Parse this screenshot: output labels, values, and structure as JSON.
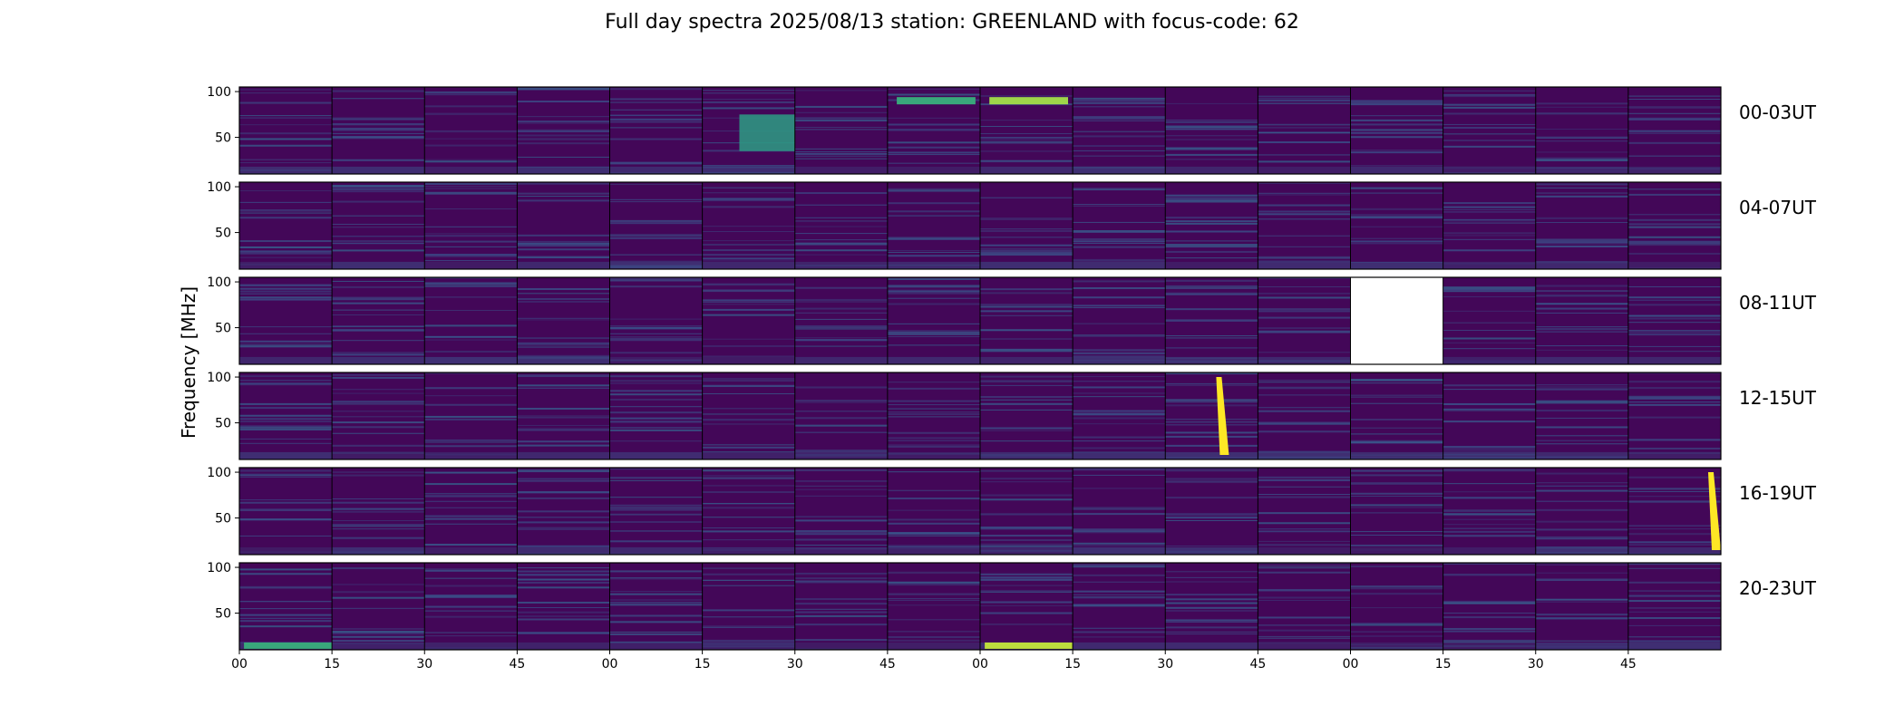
{
  "chart_data": {
    "type": "heatmap",
    "title": "Full day spectra 2025/08/13 station: GREENLAND with focus-code: 62",
    "ylabel": "Frequency [MHz]",
    "xlabel": "",
    "rows": [
      "00-03UT",
      "04-07UT",
      "08-11UT",
      "12-15UT",
      "16-19UT",
      "20-23UT"
    ],
    "panels_per_row": 16,
    "panel_minutes": 15,
    "ylim": [
      10,
      105
    ],
    "y_ticks": [
      "100",
      "50"
    ],
    "x_tick_labels": [
      "00",
      "15",
      "30",
      "45",
      "00",
      "15",
      "30",
      "45",
      "00",
      "15",
      "30",
      "45",
      "00",
      "15",
      "30",
      "45"
    ],
    "colormap": {
      "low": "#440154",
      "mid": "#21918c",
      "high": "#fde725"
    },
    "missing_panels": [
      {
        "row": "08-11UT",
        "panel_index": 12
      }
    ],
    "bursts": [
      {
        "row": "00-03UT",
        "panel_index": 5,
        "description": "broadband emission 35-75 MHz",
        "intensity": 0.55
      },
      {
        "row": "00-03UT",
        "panel_index": 7,
        "description": "interference band ~90 MHz",
        "intensity": 0.6
      },
      {
        "row": "00-03UT",
        "panel_index": 8,
        "description": "interference band ~90 MHz",
        "intensity": 0.85
      },
      {
        "row": "12-15UT",
        "panel_index": 10,
        "description": "type III burst 15-100 MHz",
        "intensity": 1.0
      },
      {
        "row": "16-19UT",
        "panel_index": 15,
        "description": "type III burst 20-100 MHz",
        "intensity": 1.0
      },
      {
        "row": "20-23UT",
        "panel_index": 8,
        "description": "low-frequency band ~15 MHz",
        "intensity": 0.9
      },
      {
        "row": "20-23UT",
        "panel_index": 0,
        "description": "low-frequency band ~15 MHz",
        "intensity": 0.6
      }
    ]
  }
}
